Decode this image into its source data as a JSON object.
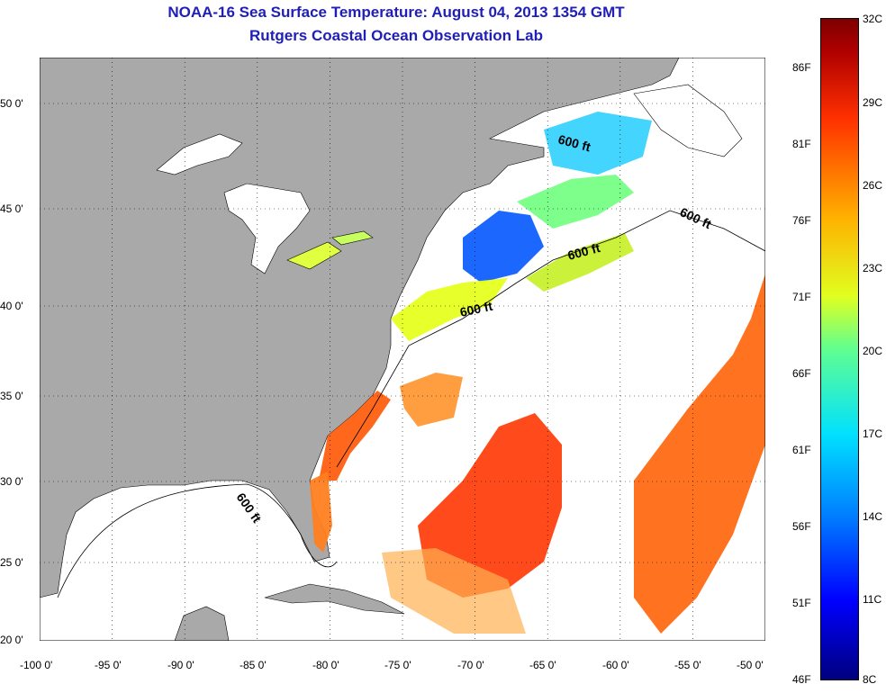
{
  "header": {
    "title": "NOAA-16 Sea Surface Temperature:  August 04, 2013 1354 GMT",
    "subtitle": "Rutgers Coastal Ocean Observation Lab"
  },
  "map": {
    "lon_range": [
      -100,
      -50
    ],
    "lat_range": [
      20,
      52
    ],
    "lon_ticks": [
      "-100 0'",
      "-95 0'",
      "-90 0'",
      "-85 0'",
      "-80 0'",
      "-75 0'",
      "-70 0'",
      "-65 0'",
      "-60 0'",
      "-55 0'",
      "-50 0'"
    ],
    "lat_ticks": [
      "20 0'",
      "25 0'",
      "30 0'",
      "35 0'",
      "40 0'",
      "45 0'",
      "50 0'"
    ],
    "land_color": "#a9a9a9",
    "no_data_color": "#ffffff",
    "grid": "dotted",
    "isobath_labels": [
      "600 ft",
      "600 ft",
      "600 ft",
      "600 ft",
      "600 ft"
    ]
  },
  "colorbar": {
    "celsius_labels": [
      "32C",
      "29C",
      "26C",
      "23C",
      "20C",
      "17C",
      "14C",
      "11C",
      "8C"
    ],
    "fahrenheit_labels": [
      "86F",
      "81F",
      "76F",
      "71F",
      "66F",
      "61F",
      "56F",
      "51F",
      "46F"
    ],
    "celsius_range": [
      8,
      32
    ]
  }
}
